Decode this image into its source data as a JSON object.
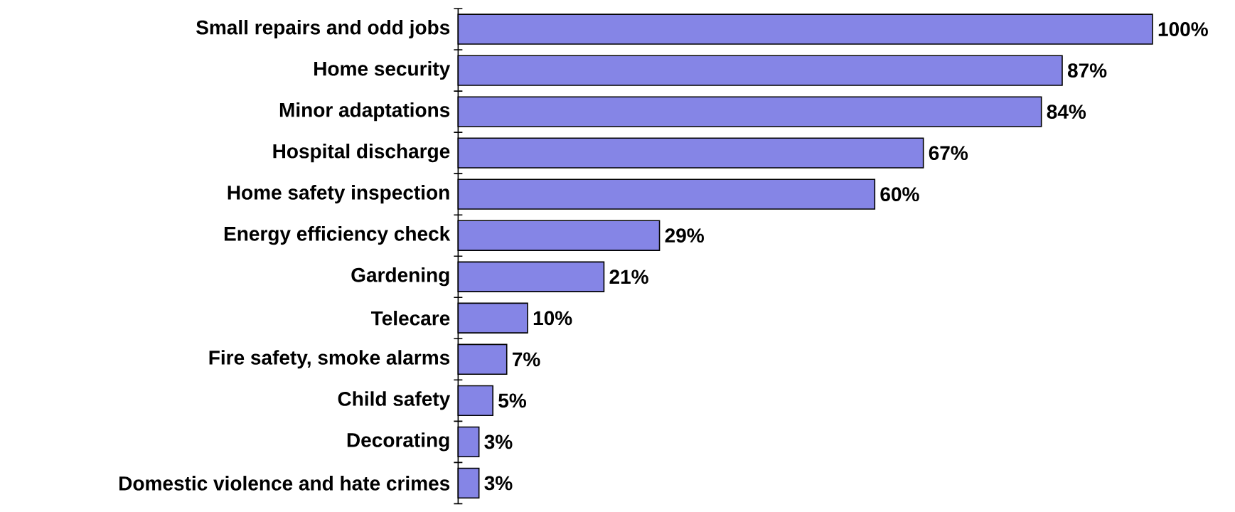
{
  "chart_data": {
    "type": "bar",
    "orientation": "horizontal",
    "color": "#8585e6",
    "categories": [
      "Small repairs and odd jobs",
      "Home security",
      "Minor adaptations",
      "Hospital discharge",
      "Home safety inspection",
      "Energy efficiency check",
      "Gardening",
      "Telecare",
      "Fire safety, smoke alarms",
      "Child safety",
      "Decorating",
      "Domestic violence and hate crimes"
    ],
    "values": [
      100,
      87,
      84,
      67,
      60,
      29,
      21,
      10,
      7,
      5,
      3,
      3
    ],
    "value_labels": [
      "100%",
      "87%",
      "84%",
      "67%",
      "60%",
      "29%",
      "21%",
      "10%",
      "7%",
      "5%",
      "3%",
      "3%"
    ]
  }
}
